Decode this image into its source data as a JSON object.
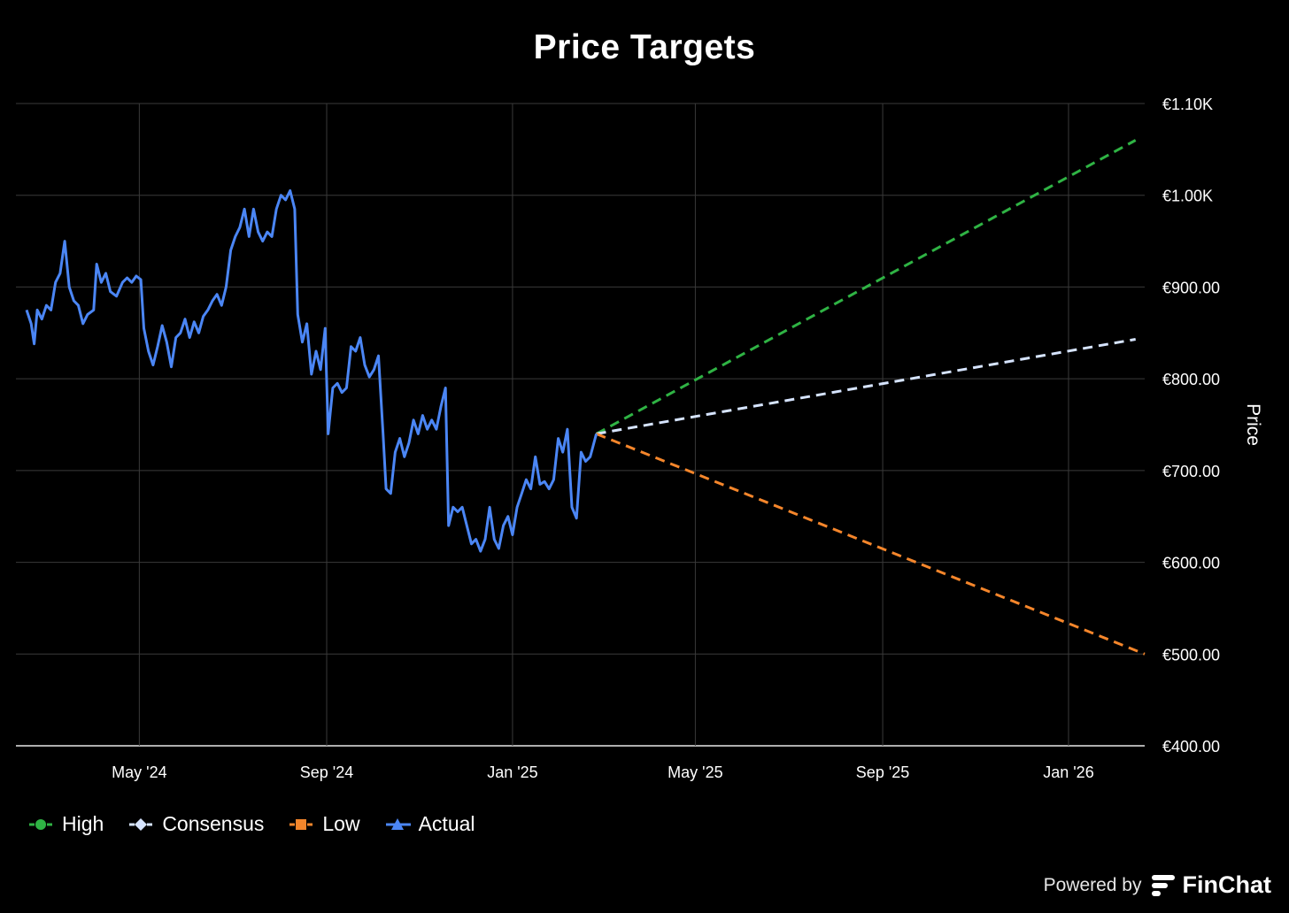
{
  "chart_data": {
    "type": "line",
    "title": "Price Targets",
    "ylabel": "Price",
    "ylim": [
      400,
      1100
    ],
    "y_ticks": [
      "€1.10K",
      "€1.00K",
      "€900.00",
      "€800.00",
      "€700.00",
      "€600.00",
      "€500.00",
      "€400.00"
    ],
    "y_tick_values": [
      1100,
      1000,
      900,
      800,
      700,
      600,
      500,
      400
    ],
    "xlim": [
      "2024-02-10",
      "2026-02-20"
    ],
    "x_ticks": [
      {
        "label": "May '24",
        "date": "2024-05-01"
      },
      {
        "label": "Sep '24",
        "date": "2024-09-01"
      },
      {
        "label": "Jan '25",
        "date": "2025-01-01"
      },
      {
        "label": "May '25",
        "date": "2025-05-01"
      },
      {
        "label": "Sep '25",
        "date": "2025-09-01"
      },
      {
        "label": "Jan '26",
        "date": "2026-01-01"
      }
    ],
    "grid": true,
    "legend_position": "bottom-left",
    "series": [
      {
        "name": "High",
        "color": "#2fb344",
        "style": "dashed",
        "marker": "circle",
        "points": [
          [
            "2025-02-25",
            740
          ],
          [
            "2026-02-14",
            1060
          ]
        ]
      },
      {
        "name": "Consensus",
        "color": "#d6e4ff",
        "style": "dashed",
        "marker": "diamond",
        "points": [
          [
            "2025-02-25",
            740
          ],
          [
            "2026-02-14",
            843
          ]
        ]
      },
      {
        "name": "Low",
        "color": "#f5862b",
        "style": "dashed",
        "marker": "square",
        "points": [
          [
            "2025-02-25",
            740
          ],
          [
            "2026-02-20",
            500
          ]
        ]
      },
      {
        "name": "Actual",
        "color": "#4b86f5",
        "style": "solid",
        "marker": "triangle",
        "points": [
          [
            "2024-02-17",
            875
          ],
          [
            "2024-02-20",
            860
          ],
          [
            "2024-02-22",
            838
          ],
          [
            "2024-02-24",
            875
          ],
          [
            "2024-02-27",
            865
          ],
          [
            "2024-03-01",
            880
          ],
          [
            "2024-03-04",
            875
          ],
          [
            "2024-03-07",
            905
          ],
          [
            "2024-03-10",
            915
          ],
          [
            "2024-03-13",
            950
          ],
          [
            "2024-03-16",
            900
          ],
          [
            "2024-03-19",
            885
          ],
          [
            "2024-03-22",
            880
          ],
          [
            "2024-03-25",
            860
          ],
          [
            "2024-03-28",
            870
          ],
          [
            "2024-04-01",
            875
          ],
          [
            "2024-04-03",
            925
          ],
          [
            "2024-04-06",
            905
          ],
          [
            "2024-04-09",
            915
          ],
          [
            "2024-04-12",
            895
          ],
          [
            "2024-04-16",
            890
          ],
          [
            "2024-04-20",
            905
          ],
          [
            "2024-04-23",
            910
          ],
          [
            "2024-04-26",
            905
          ],
          [
            "2024-04-29",
            912
          ],
          [
            "2024-05-02",
            908
          ],
          [
            "2024-05-04",
            855
          ],
          [
            "2024-05-07",
            830
          ],
          [
            "2024-05-10",
            815
          ],
          [
            "2024-05-13",
            835
          ],
          [
            "2024-05-16",
            858
          ],
          [
            "2024-05-19",
            840
          ],
          [
            "2024-05-22",
            813
          ],
          [
            "2024-05-25",
            845
          ],
          [
            "2024-05-28",
            850
          ],
          [
            "2024-05-31",
            865
          ],
          [
            "2024-06-03",
            845
          ],
          [
            "2024-06-06",
            862
          ],
          [
            "2024-06-09",
            850
          ],
          [
            "2024-06-12",
            868
          ],
          [
            "2024-06-15",
            875
          ],
          [
            "2024-06-18",
            885
          ],
          [
            "2024-06-21",
            892
          ],
          [
            "2024-06-24",
            880
          ],
          [
            "2024-06-27",
            900
          ],
          [
            "2024-06-30",
            940
          ],
          [
            "2024-07-03",
            955
          ],
          [
            "2024-07-06",
            965
          ],
          [
            "2024-07-09",
            985
          ],
          [
            "2024-07-12",
            955
          ],
          [
            "2024-07-15",
            985
          ],
          [
            "2024-07-18",
            960
          ],
          [
            "2024-07-21",
            950
          ],
          [
            "2024-07-24",
            960
          ],
          [
            "2024-07-27",
            955
          ],
          [
            "2024-07-30",
            985
          ],
          [
            "2024-08-02",
            1000
          ],
          [
            "2024-08-05",
            995
          ],
          [
            "2024-08-08",
            1005
          ],
          [
            "2024-08-11",
            985
          ],
          [
            "2024-08-13",
            870
          ],
          [
            "2024-08-16",
            840
          ],
          [
            "2024-08-19",
            860
          ],
          [
            "2024-08-22",
            805
          ],
          [
            "2024-08-25",
            830
          ],
          [
            "2024-08-28",
            810
          ],
          [
            "2024-08-31",
            855
          ],
          [
            "2024-09-02",
            740
          ],
          [
            "2024-09-05",
            790
          ],
          [
            "2024-09-08",
            795
          ],
          [
            "2024-09-11",
            785
          ],
          [
            "2024-09-14",
            790
          ],
          [
            "2024-09-17",
            835
          ],
          [
            "2024-09-20",
            830
          ],
          [
            "2024-09-23",
            845
          ],
          [
            "2024-09-26",
            815
          ],
          [
            "2024-09-29",
            802
          ],
          [
            "2024-10-02",
            810
          ],
          [
            "2024-10-05",
            825
          ],
          [
            "2024-10-08",
            740
          ],
          [
            "2024-10-10",
            680
          ],
          [
            "2024-10-13",
            675
          ],
          [
            "2024-10-16",
            720
          ],
          [
            "2024-10-19",
            735
          ],
          [
            "2024-10-22",
            715
          ],
          [
            "2024-10-25",
            730
          ],
          [
            "2024-10-28",
            755
          ],
          [
            "2024-10-31",
            740
          ],
          [
            "2024-11-03",
            760
          ],
          [
            "2024-11-06",
            745
          ],
          [
            "2024-11-09",
            755
          ],
          [
            "2024-11-12",
            745
          ],
          [
            "2024-11-15",
            770
          ],
          [
            "2024-11-18",
            790
          ],
          [
            "2024-11-20",
            640
          ],
          [
            "2024-11-23",
            660
          ],
          [
            "2024-11-26",
            655
          ],
          [
            "2024-11-29",
            660
          ],
          [
            "2024-12-02",
            640
          ],
          [
            "2024-12-05",
            620
          ],
          [
            "2024-12-08",
            625
          ],
          [
            "2024-12-11",
            612
          ],
          [
            "2024-12-14",
            625
          ],
          [
            "2024-12-17",
            660
          ],
          [
            "2024-12-20",
            625
          ],
          [
            "2024-12-23",
            615
          ],
          [
            "2024-12-26",
            640
          ],
          [
            "2024-12-29",
            650
          ],
          [
            "2025-01-01",
            630
          ],
          [
            "2025-01-04",
            660
          ],
          [
            "2025-01-07",
            675
          ],
          [
            "2025-01-10",
            690
          ],
          [
            "2025-01-13",
            680
          ],
          [
            "2025-01-16",
            715
          ],
          [
            "2025-01-19",
            685
          ],
          [
            "2025-01-22",
            688
          ],
          [
            "2025-01-25",
            680
          ],
          [
            "2025-01-28",
            690
          ],
          [
            "2025-01-31",
            735
          ],
          [
            "2025-02-03",
            720
          ],
          [
            "2025-02-06",
            745
          ],
          [
            "2025-02-09",
            660
          ],
          [
            "2025-02-12",
            648
          ],
          [
            "2025-02-15",
            720
          ],
          [
            "2025-02-18",
            710
          ],
          [
            "2025-02-21",
            715
          ],
          [
            "2025-02-25",
            740
          ]
        ]
      }
    ]
  },
  "footer": {
    "powered_by": "Powered by",
    "brand": "FinChat"
  }
}
